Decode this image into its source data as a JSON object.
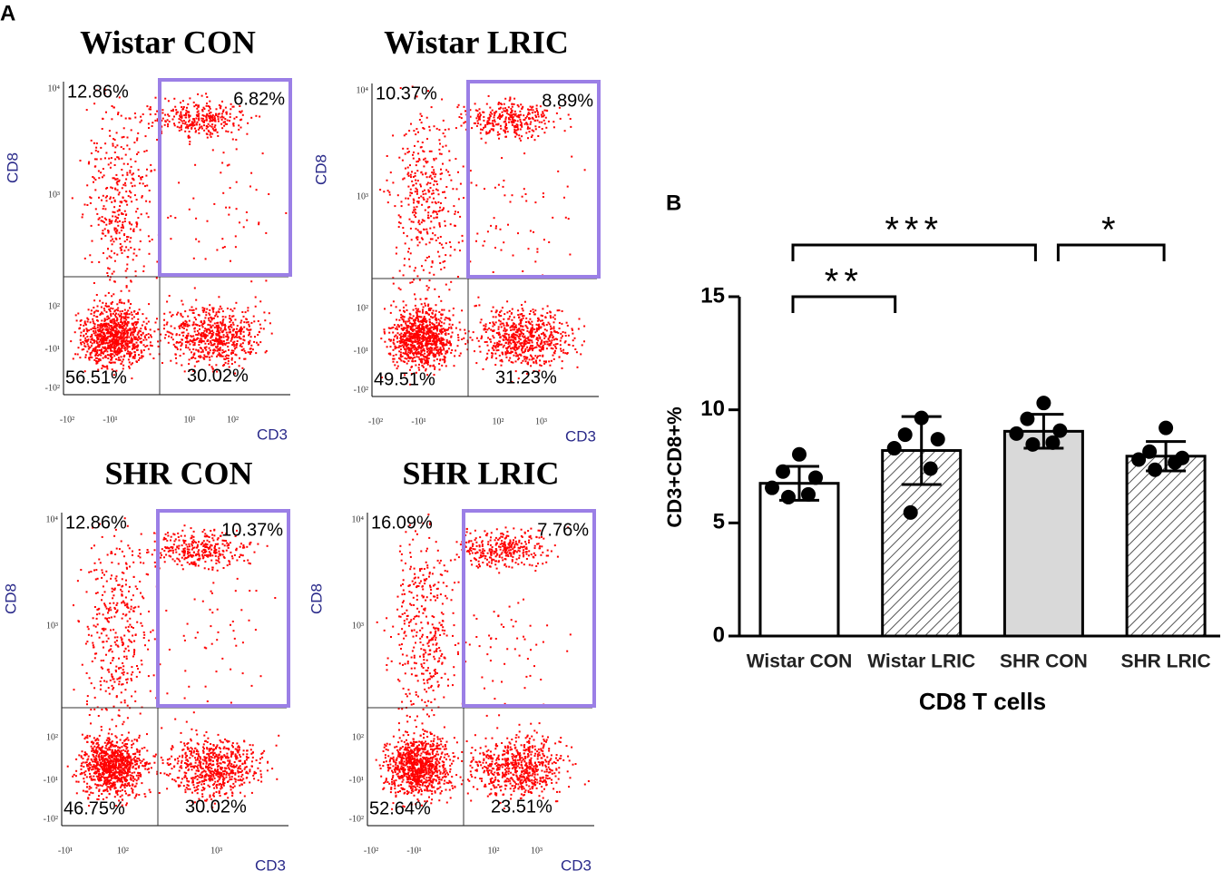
{
  "panel_a": {
    "label": "A",
    "x_label": "CD3",
    "y_label": "CD8",
    "plots": [
      {
        "title": "Wistar CON",
        "quadrants": [
          {
            "value": 12.86,
            "label": "12.86%"
          },
          {
            "value": 6.82,
            "label": "6.82%"
          },
          {
            "value": 56.51,
            "label": "56.51%"
          },
          {
            "value": 30.02,
            "label": "30.02%"
          }
        ],
        "yticks": [
          "10⁴",
          "10³",
          "10²",
          "-10¹",
          "-10²"
        ],
        "xticks": [
          "-10²",
          "-10¹",
          "10¹",
          "10²"
        ]
      },
      {
        "title": "Wistar LRIC",
        "quadrants": [
          {
            "value": 10.37,
            "label": "10.37%"
          },
          {
            "value": 8.89,
            "label": "8.89%"
          },
          {
            "value": 49.51,
            "label": "49.51%"
          },
          {
            "value": 31.23,
            "label": "31.23%"
          }
        ],
        "yticks": [
          "10⁴",
          "10³",
          "10²",
          "-10¹",
          "-10²"
        ],
        "xticks": [
          "-10²",
          "-10¹",
          "10²",
          "10³"
        ]
      },
      {
        "title": "SHR CON",
        "quadrants": [
          {
            "value": 12.86,
            "label": "12.86%"
          },
          {
            "value": 10.37,
            "label": "10.37%"
          },
          {
            "value": 46.75,
            "label": "46.75%"
          },
          {
            "value": 30.02,
            "label": "30.02%"
          }
        ],
        "yticks": [
          "10⁴",
          "10³",
          "10²",
          "-10¹",
          "-10²"
        ],
        "xticks": [
          "-10¹",
          "10²",
          "10³"
        ]
      },
      {
        "title": "SHR LRIC",
        "quadrants": [
          {
            "value": 16.09,
            "label": "16.09%"
          },
          {
            "value": 7.76,
            "label": "7.76%"
          },
          {
            "value": 52.64,
            "label": "52.64%"
          },
          {
            "value": 23.51,
            "label": "23.51%"
          }
        ],
        "yticks": [
          "10⁴",
          "10³",
          "10²",
          "-10¹",
          "-10²"
        ],
        "xticks": [
          "-10²",
          "-10¹",
          "10²",
          "10³"
        ]
      }
    ]
  },
  "chart_data": {
    "type": "bar",
    "panel_label": "B",
    "x_label": "CD8 T cells",
    "y_label": "CD3+CD8+%",
    "categories": [
      "Wistar CON",
      "Wistar LRIC",
      "SHR CON",
      "SHR LRIC"
    ],
    "values": [
      6.75,
      8.2,
      9.05,
      7.95
    ],
    "errors": [
      0.75,
      1.5,
      0.75,
      0.65
    ],
    "colors": [
      "#ffffff",
      "#ffffff",
      "#d9d9d9",
      "#ffffff"
    ],
    "patterns": [
      "none",
      "hatch",
      "none",
      "hatch"
    ],
    "points": [
      [
        8.03,
        7.27,
        7.0,
        6.55,
        6.26,
        6.14
      ],
      [
        9.64,
        8.9,
        8.7,
        8.3,
        7.4,
        5.46
      ],
      [
        10.3,
        9.6,
        9.08,
        8.95,
        8.55,
        8.47
      ],
      [
        9.2,
        8.15,
        7.87,
        7.8,
        7.67,
        7.35
      ]
    ],
    "ylim": [
      0,
      15
    ],
    "yticks": [
      0,
      5,
      10,
      15
    ],
    "annotations": [
      {
        "text": "**",
        "from": 0,
        "to": 1
      },
      {
        "text": "***",
        "from": 0,
        "to": 2
      },
      {
        "text": "*",
        "from": 2,
        "to": 3
      }
    ]
  }
}
